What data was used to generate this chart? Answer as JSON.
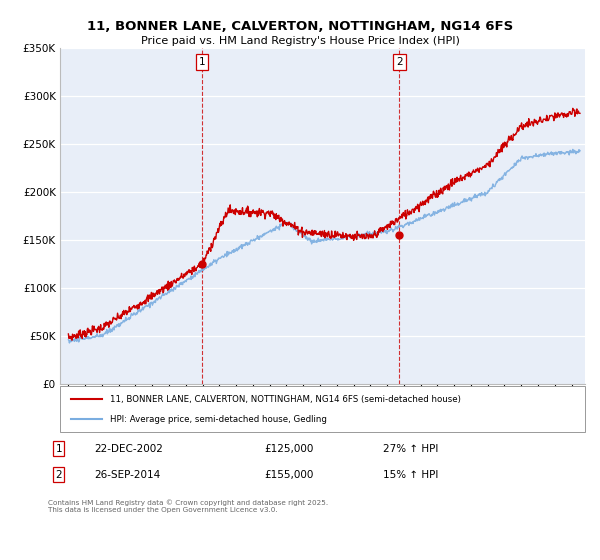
{
  "title": "11, BONNER LANE, CALVERTON, NOTTINGHAM, NG14 6FS",
  "subtitle": "Price paid vs. HM Land Registry's House Price Index (HPI)",
  "ylim": [
    0,
    350000
  ],
  "xlim_start": 1994.5,
  "xlim_end": 2025.8,
  "sale1_date": 2002.97,
  "sale1_price": 125000,
  "sale2_date": 2014.73,
  "sale2_price": 155000,
  "red_line_color": "#cc0000",
  "blue_line_color": "#7aade0",
  "vline_color": "#cc0000",
  "background_color": "#e8eef8",
  "legend1_label": "11, BONNER LANE, CALVERTON, NOTTINGHAM, NG14 6FS (semi-detached house)",
  "legend2_label": "HPI: Average price, semi-detached house, Gedling",
  "footer": "Contains HM Land Registry data © Crown copyright and database right 2025.\nThis data is licensed under the Open Government Licence v3.0."
}
